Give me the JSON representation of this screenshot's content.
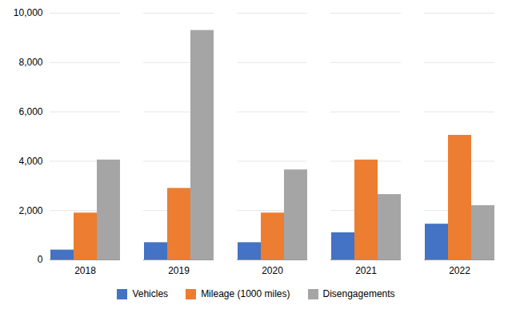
{
  "chart_data": {
    "type": "bar",
    "categories": [
      "2018",
      "2019",
      "2020",
      "2021",
      "2022"
    ],
    "series": [
      {
        "name": "Vehicles",
        "color": "#4472C4",
        "values": [
          400,
          700,
          700,
          1100,
          1450
        ]
      },
      {
        "name": "Mileage (1000 miles)",
        "color": "#ED7D31",
        "values": [
          1900,
          2900,
          1900,
          4050,
          5050
        ]
      },
      {
        "name": "Disengagements",
        "color": "#A5A5A5",
        "values": [
          4050,
          9300,
          3650,
          2650,
          2200
        ]
      }
    ],
    "ylim": [
      0,
      10000
    ],
    "yticks": [
      0,
      2000,
      4000,
      6000,
      8000,
      10000
    ],
    "grid": true,
    "legend": "bottom"
  }
}
